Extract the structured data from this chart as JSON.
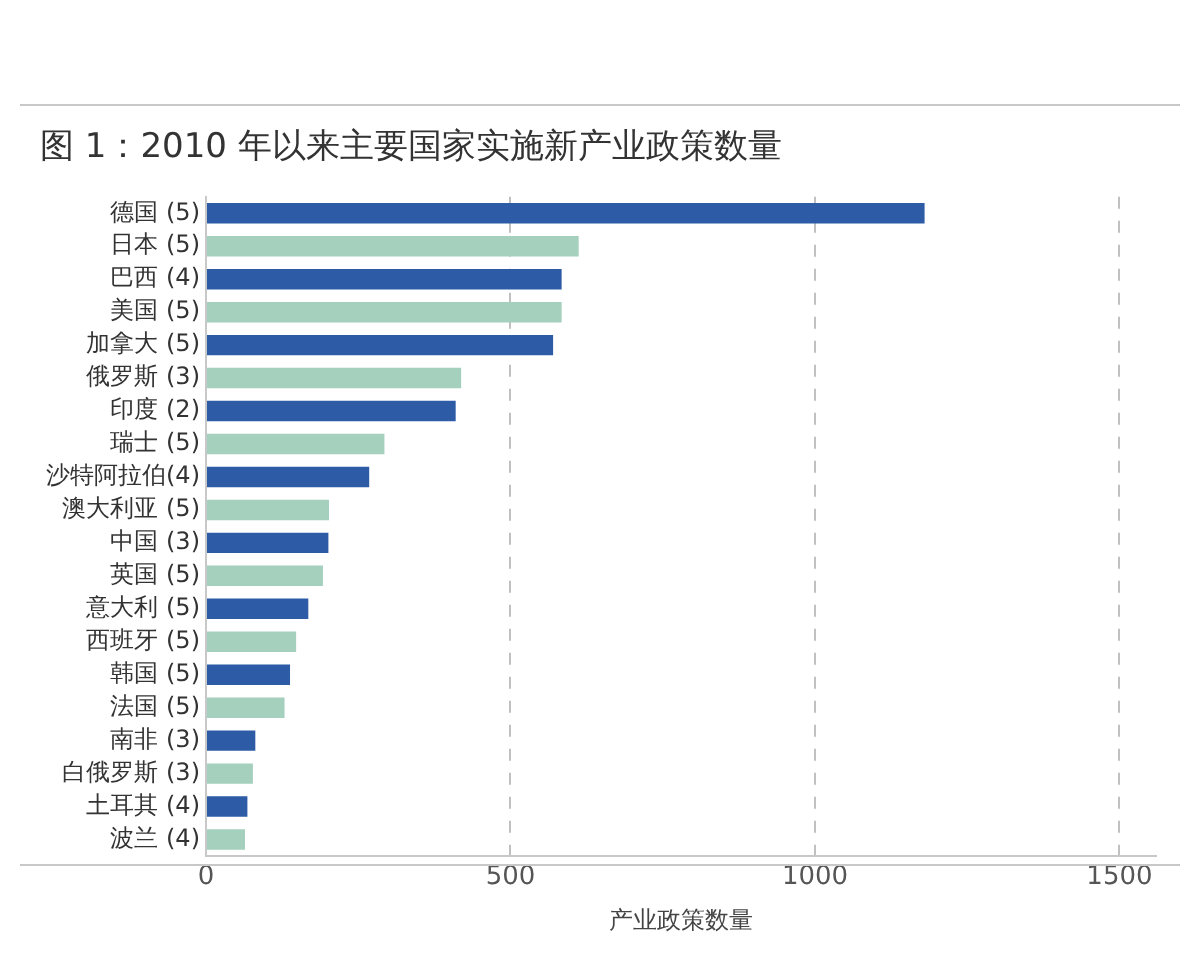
{
  "chart_data": {
    "type": "bar",
    "orientation": "horizontal",
    "title": "图 1：2010 年以来主要国家实施新产业政策数量",
    "xlabel": "产业政策数量",
    "categories": [
      "德国 (5)",
      "日本 (5)",
      "巴西 (4)",
      "美国 (5)",
      "加拿大 (5)",
      "俄罗斯 (3)",
      "印度 (2)",
      "瑞士 (5)",
      "沙特阿拉伯(4)",
      "澳大利亚 (5)",
      "中国 (3)",
      "英国 (5)",
      "意大利 (5)",
      "西班牙 (5)",
      "韩国 (5)",
      "法国 (5)",
      "南非 (3)",
      "白俄罗斯 (3)",
      "土耳其 (4)",
      "波兰 (4)"
    ],
    "values": [
      1180,
      612,
      584,
      584,
      570,
      419,
      410,
      293,
      268,
      202,
      201,
      192,
      168,
      148,
      138,
      129,
      81,
      77,
      68,
      64
    ],
    "colors": [
      "#2d5ba6",
      "#a4d0bd",
      "#2d5ba6",
      "#a4d0bd",
      "#2d5ba6",
      "#a4d0bd",
      "#2d5ba6",
      "#a4d0bd",
      "#2d5ba6",
      "#a4d0bd",
      "#2d5ba6",
      "#a4d0bd",
      "#2d5ba6",
      "#a4d0bd",
      "#2d5ba6",
      "#a4d0bd",
      "#2d5ba6",
      "#a4d0bd",
      "#2d5ba6",
      "#a4d0bd"
    ],
    "xlim": [
      0,
      1560
    ],
    "xticks": [
      0,
      500,
      1000,
      1500
    ],
    "grid": "x"
  }
}
